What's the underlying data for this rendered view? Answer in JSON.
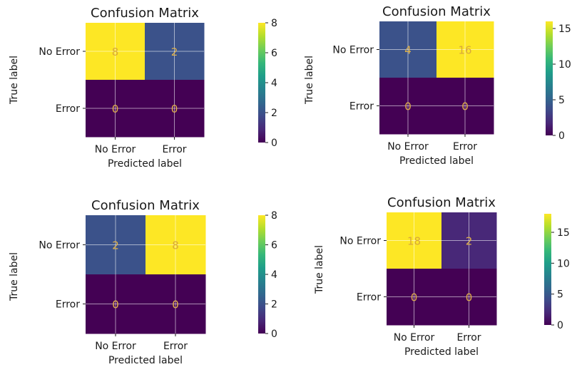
{
  "colors": {
    "viridis_stops": [
      "#440154",
      "#482878",
      "#3e4a89",
      "#31688e",
      "#26828e",
      "#1f9e89",
      "#35b779",
      "#6dcd59",
      "#b4de2c",
      "#fde725"
    ],
    "cell_text_low": "#fde725",
    "cell_text_high": "#440154",
    "grid": "#ffffff"
  },
  "chart_data": [
    {
      "type": "heatmap",
      "title": "Confusion Matrix",
      "xlabel": "Predicted label",
      "ylabel": "True label",
      "x_categories": [
        "No Error",
        "Error"
      ],
      "y_categories": [
        "No Error",
        "Error"
      ],
      "values": [
        [
          8,
          2
        ],
        [
          0,
          0
        ]
      ],
      "value_labels": [
        [
          "8",
          "2"
        ],
        [
          "0",
          "0"
        ]
      ],
      "colorbar": {
        "min": 0,
        "max": 8,
        "ticks": [
          0,
          2,
          4,
          6,
          8
        ],
        "tick_labels": [
          "0",
          "2",
          "4",
          "6",
          "8"
        ]
      }
    },
    {
      "type": "heatmap",
      "title": "Confusion Matrix",
      "xlabel": "Predicted label",
      "ylabel": "True label",
      "x_categories": [
        "No Error",
        "Error"
      ],
      "y_categories": [
        "No Error",
        "Error"
      ],
      "values": [
        [
          4,
          16
        ],
        [
          0,
          0
        ]
      ],
      "value_labels": [
        [
          "4",
          "16"
        ],
        [
          "0",
          "0"
        ]
      ],
      "colorbar": {
        "min": 0,
        "max": 16,
        "ticks": [
          0,
          5,
          10,
          15
        ],
        "tick_labels": [
          "0",
          "5",
          "10",
          "15"
        ]
      }
    },
    {
      "type": "heatmap",
      "title": "Confusion Matrix",
      "xlabel": "Predicted label",
      "ylabel": "True label",
      "x_categories": [
        "No Error",
        "Error"
      ],
      "y_categories": [
        "No Error",
        "Error"
      ],
      "values": [
        [
          2,
          8
        ],
        [
          0,
          0
        ]
      ],
      "value_labels": [
        [
          "2",
          "8"
        ],
        [
          "0",
          "0"
        ]
      ],
      "colorbar": {
        "min": 0,
        "max": 8,
        "ticks": [
          0,
          2,
          4,
          6,
          8
        ],
        "tick_labels": [
          "0",
          "2",
          "4",
          "6",
          "8"
        ]
      }
    },
    {
      "type": "heatmap",
      "title": "Confusion Matrix",
      "xlabel": "Predicted label",
      "ylabel": "True label",
      "x_categories": [
        "No Error",
        "Error"
      ],
      "y_categories": [
        "No Error",
        "Error"
      ],
      "values": [
        [
          18,
          2
        ],
        [
          0,
          0
        ]
      ],
      "value_labels": [
        [
          "18",
          "2"
        ],
        [
          "0",
          "0"
        ]
      ],
      "colorbar": {
        "min": 0,
        "max": 18,
        "ticks": [
          0,
          5,
          10,
          15
        ],
        "tick_labels": [
          "0",
          "5",
          "10",
          "15"
        ]
      }
    }
  ]
}
